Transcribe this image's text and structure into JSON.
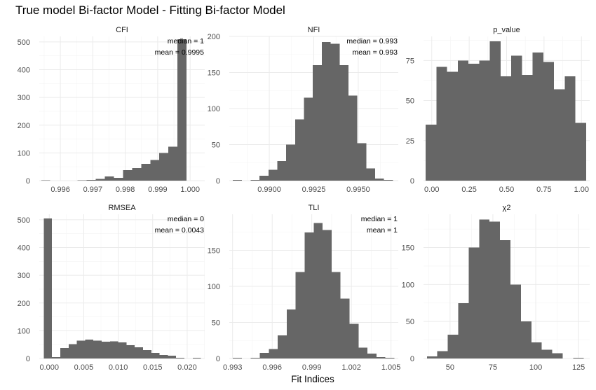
{
  "figure": {
    "title": "True model Bi-factor Model - Fitting Bi-factor Model",
    "xlabel": "Fit Indices",
    "bar_color": "#666666"
  },
  "chart_data": [
    {
      "type": "bar",
      "title": "CFI",
      "xlim": [
        0.99535,
        1.00045
      ],
      "ylim": [
        0,
        520
      ],
      "x_ticks": [
        0.996,
        0.997,
        0.998,
        0.999,
        1.0
      ],
      "x_tick_labels": [
        "0.996",
        "0.997",
        "0.998",
        "0.999",
        "1.000"
      ],
      "y_ticks": [
        0,
        100,
        200,
        300,
        400,
        500
      ],
      "y_tick_labels": [
        "0",
        "100",
        "200",
        "300",
        "400",
        "500"
      ],
      "bin_width": 0.00028,
      "bin_centers": [
        0.99555,
        0.99583,
        0.99611,
        0.99639,
        0.99667,
        0.99695,
        0.99723,
        0.99751,
        0.99779,
        0.99807,
        0.99835,
        0.99863,
        0.99891,
        0.99919,
        0.99947,
        0.99975,
        1.00003
      ],
      "values": [
        1,
        0,
        0,
        0,
        1,
        2,
        6,
        15,
        10,
        38,
        45,
        60,
        75,
        100,
        122,
        510,
        0
      ],
      "annotations": [
        "median =  1",
        "mean = 0.9995"
      ]
    },
    {
      "type": "bar",
      "title": "NFI",
      "xlim": [
        0.98775,
        0.99725
      ],
      "ylim": [
        0,
        200
      ],
      "x_ticks": [
        0.99,
        0.9925,
        0.995
      ],
      "x_tick_labels": [
        "0.9900",
        "0.9925",
        "0.9950"
      ],
      "y_ticks": [
        0,
        50,
        100,
        150,
        200
      ],
      "y_tick_labels": [
        "0",
        "50",
        "100",
        "150",
        "200"
      ],
      "bin_width": 0.0005,
      "bin_centers": [
        0.9882,
        0.9887,
        0.9892,
        0.9897,
        0.9902,
        0.9907,
        0.9912,
        0.9917,
        0.9922,
        0.9927,
        0.9932,
        0.9937,
        0.9942,
        0.9947,
        0.9952,
        0.9957,
        0.9962,
        0.9967
      ],
      "values": [
        1,
        0,
        1,
        7,
        15,
        27,
        50,
        85,
        115,
        160,
        192,
        190,
        160,
        118,
        52,
        17,
        3,
        1
      ],
      "annotations": [
        "median =  0.993",
        "mean = 0.993"
      ]
    },
    {
      "type": "bar",
      "title": "p_value",
      "xlim": [
        -0.055,
        1.055
      ],
      "ylim": [
        0,
        90
      ],
      "x_ticks": [
        0.0,
        0.25,
        0.5,
        0.75,
        1.0
      ],
      "x_tick_labels": [
        "0.00",
        "0.25",
        "0.50",
        "0.75",
        "1.00"
      ],
      "y_ticks": [
        0,
        25,
        50,
        75
      ],
      "y_tick_labels": [
        "0",
        "25",
        "50",
        "75"
      ],
      "bin_width": 0.0714,
      "bin_centers": [
        -0.0043,
        0.0671,
        0.1386,
        0.21,
        0.2814,
        0.3529,
        0.4243,
        0.4957,
        0.5671,
        0.6386,
        0.71,
        0.7814,
        0.8529,
        0.9243,
        0.9957
      ],
      "values": [
        35,
        71,
        68,
        75,
        73,
        75,
        87,
        65,
        78,
        66,
        80,
        74,
        57,
        65,
        36
      ],
      "annotations": []
    },
    {
      "type": "bar",
      "title": "RMSEA",
      "xlim": [
        -0.00145,
        0.02255
      ],
      "ylim": [
        0,
        520
      ],
      "x_ticks": [
        0.0,
        0.005,
        0.01,
        0.015,
        0.02
      ],
      "x_tick_labels": [
        "0.000",
        "0.005",
        "0.010",
        "0.015",
        "0.020"
      ],
      "y_ticks": [
        0,
        100,
        200,
        300,
        400,
        500
      ],
      "y_tick_labels": [
        "0",
        "100",
        "200",
        "300",
        "400",
        "500"
      ],
      "bin_width": 0.0012,
      "bin_centers": [
        -0.0002,
        0.001,
        0.0022,
        0.0034,
        0.0046,
        0.0058,
        0.007,
        0.0082,
        0.0094,
        0.0106,
        0.0118,
        0.013,
        0.0142,
        0.0154,
        0.0166,
        0.0178,
        0.019,
        0.0202,
        0.0214
      ],
      "values": [
        505,
        5,
        38,
        52,
        65,
        68,
        65,
        60,
        62,
        58,
        48,
        40,
        30,
        20,
        12,
        10,
        2,
        0,
        2
      ],
      "annotations": [
        "median =  0",
        "mean = 0.0043"
      ]
    },
    {
      "type": "bar",
      "title": "TLI",
      "xlim": [
        0.99275,
        1.00555
      ],
      "ylim": [
        0,
        200
      ],
      "x_ticks": [
        0.993,
        0.996,
        0.999,
        1.002,
        1.005
      ],
      "x_tick_labels": [
        "0.993",
        "0.996",
        "0.999",
        "1.002",
        "1.005"
      ],
      "y_ticks": [
        0,
        50,
        100,
        150
      ],
      "y_tick_labels": [
        "0",
        "50",
        "100",
        "150"
      ],
      "bin_width": 0.00068,
      "bin_centers": [
        0.99336,
        0.99404,
        0.99472,
        0.9954,
        0.99608,
        0.99676,
        0.99744,
        0.99812,
        0.9988,
        0.99948,
        1.00016,
        1.00084,
        1.00152,
        1.0022,
        1.00288,
        1.00356,
        1.00424,
        1.00492
      ],
      "values": [
        1,
        0,
        1,
        8,
        13,
        32,
        68,
        120,
        175,
        188,
        178,
        120,
        83,
        48,
        15,
        7,
        2,
        1
      ],
      "annotations": [
        "median =  1",
        "mean = 1"
      ]
    },
    {
      "type": "bar",
      "title": "χ2",
      "xlim": [
        34.5,
        131.5
      ],
      "ylim": [
        0,
        195
      ],
      "x_ticks": [
        50,
        75,
        100,
        125
      ],
      "x_tick_labels": [
        "50",
        "75",
        "100",
        "125"
      ],
      "y_ticks": [
        0,
        50,
        100,
        150
      ],
      "y_tick_labels": [
        "0",
        "50",
        "100",
        "150"
      ],
      "bin_width": 6.1,
      "bin_centers": [
        39.5,
        45.6,
        51.7,
        57.8,
        63.9,
        70.0,
        76.1,
        82.2,
        88.3,
        94.4,
        100.5,
        106.6,
        112.7,
        118.8,
        124.9
      ],
      "values": [
        3,
        10,
        32,
        75,
        150,
        188,
        185,
        160,
        100,
        50,
        22,
        12,
        7,
        0,
        1
      ],
      "annotations": []
    }
  ]
}
